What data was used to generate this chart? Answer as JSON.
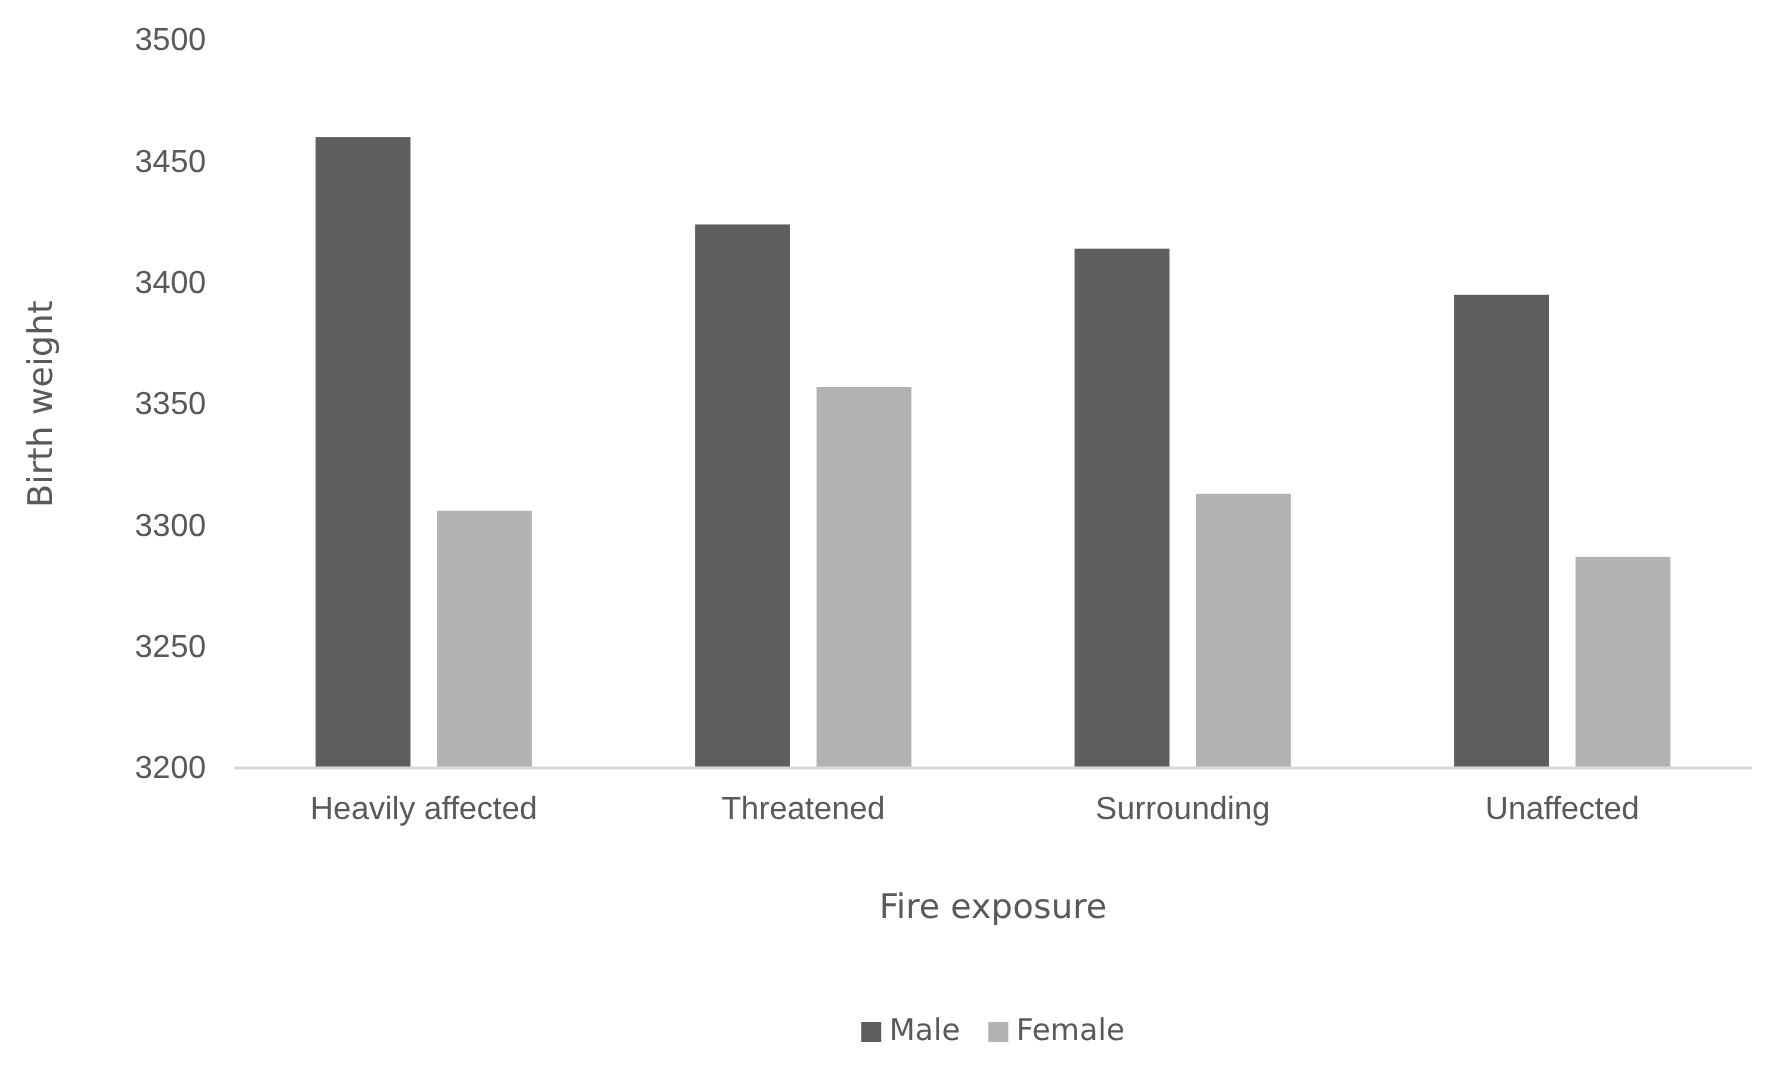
{
  "chart_data": {
    "type": "bar",
    "xlabel": "Fire exposure",
    "ylabel": "Birth weight",
    "categories": [
      "Heavily affected",
      "Threatened",
      "Surrounding",
      "Unaffected"
    ],
    "series": [
      {
        "name": "Male",
        "color": "#5e5e5e",
        "values": [
          3460,
          3424,
          3414,
          3395
        ]
      },
      {
        "name": "Female",
        "color": "#b2b2b2",
        "values": [
          3306,
          3357,
          3313,
          3287
        ]
      }
    ],
    "ylim": [
      3200,
      3500
    ],
    "yticks": [
      3200,
      3250,
      3300,
      3350,
      3400,
      3450,
      3500
    ],
    "grid": false,
    "legend": "bottom"
  }
}
